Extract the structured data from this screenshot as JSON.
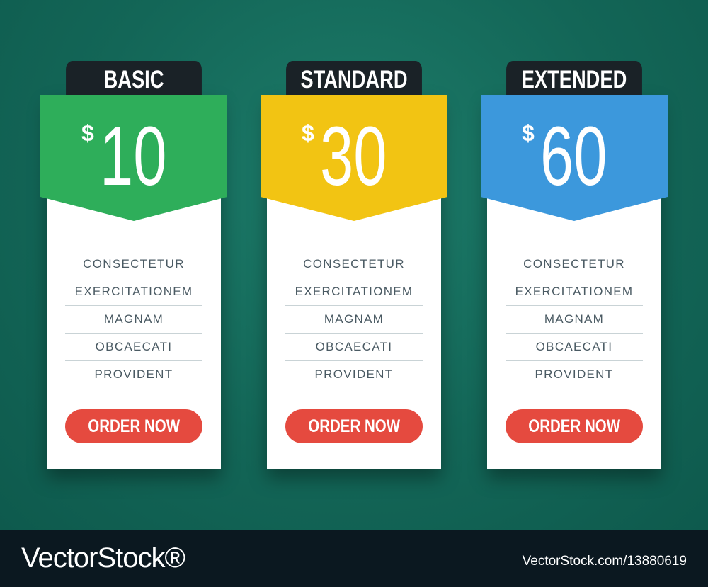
{
  "plans": [
    {
      "name": "BASIC",
      "currency": "$",
      "price": "10",
      "color": "#2eae5a",
      "features": [
        "CONSECTETUR",
        "EXERCITATIONEM",
        "MAGNAM",
        "OBCAECATI",
        "PROVIDENT"
      ],
      "button": "ORDER NOW"
    },
    {
      "name": "STANDARD",
      "currency": "$",
      "price": "30",
      "color": "#f2c413",
      "features": [
        "CONSECTETUR",
        "EXERCITATIONEM",
        "MAGNAM",
        "OBCAECATI",
        "PROVIDENT"
      ],
      "button": "ORDER NOW"
    },
    {
      "name": "EXTENDED",
      "currency": "$",
      "price": "60",
      "color": "#3c98dc",
      "features": [
        "CONSECTETUR",
        "EXERCITATIONEM",
        "MAGNAM",
        "OBCAECATI",
        "PROVIDENT"
      ],
      "button": "ORDER NOW"
    }
  ],
  "footer": {
    "logo": "VectorStock®",
    "image_id": "VectorStock.com/13880619"
  },
  "colors": {
    "background": "#136657",
    "header": "#1a2227",
    "button": "#e54a3f"
  }
}
